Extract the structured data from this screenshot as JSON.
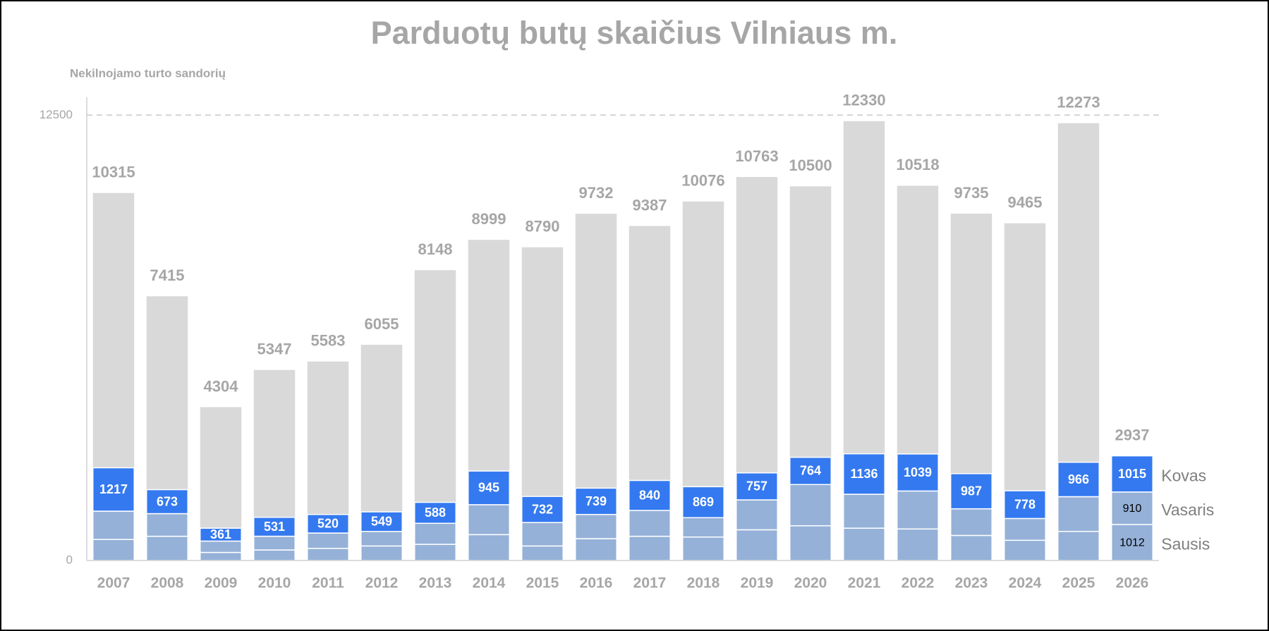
{
  "chart_data": {
    "type": "stacked-bar",
    "title": "Parduotų butų skaičius Vilniaus m.",
    "y_label": "Nekilnojamo turto sandorių",
    "categories": [
      "2007",
      "2008",
      "2009",
      "2010",
      "2011",
      "2012",
      "2013",
      "2014",
      "2015",
      "2016",
      "2017",
      "2018",
      "2019",
      "2020",
      "2021",
      "2022",
      "2023",
      "2024",
      "2025",
      "2026"
    ],
    "series": [
      {
        "name": "Sausis",
        "color": "#95b1d8",
        "label_color": "#000000",
        "data_labels": "last",
        "values": [
          590,
          680,
          227,
          295,
          340,
          408,
          454,
          726,
          408,
          612,
          680,
          658,
          862,
          975,
          907,
          885,
          703,
          567,
          816,
          1012
        ]
      },
      {
        "name": "Vasaris",
        "color": "#95b1d8",
        "label_color": "#000000",
        "data_labels": "last",
        "values": [
          795,
          635,
          318,
          386,
          431,
          408,
          590,
          840,
          658,
          680,
          726,
          544,
          840,
          1157,
          952,
          1066,
          748,
          612,
          975,
          910
        ]
      },
      {
        "name": "Kovas",
        "color": "#3479f0",
        "label_color": "#ffffff",
        "data_labels": "all",
        "values": [
          1217,
          673,
          361,
          531,
          520,
          549,
          588,
          945,
          732,
          739,
          840,
          869,
          757,
          764,
          1136,
          1039,
          987,
          778,
          966,
          1015
        ]
      }
    ],
    "totals": {
      "color": "#d9d9d9",
      "values": [
        10315,
        7415,
        4304,
        5347,
        5583,
        6055,
        8148,
        8999,
        8790,
        9732,
        9387,
        10076,
        10763,
        10500,
        12330,
        10518,
        9735,
        9465,
        12273,
        2937
      ]
    },
    "ylim": [
      0,
      13000
    ],
    "yticks": [
      0,
      12500
    ],
    "grid": "dashed"
  }
}
